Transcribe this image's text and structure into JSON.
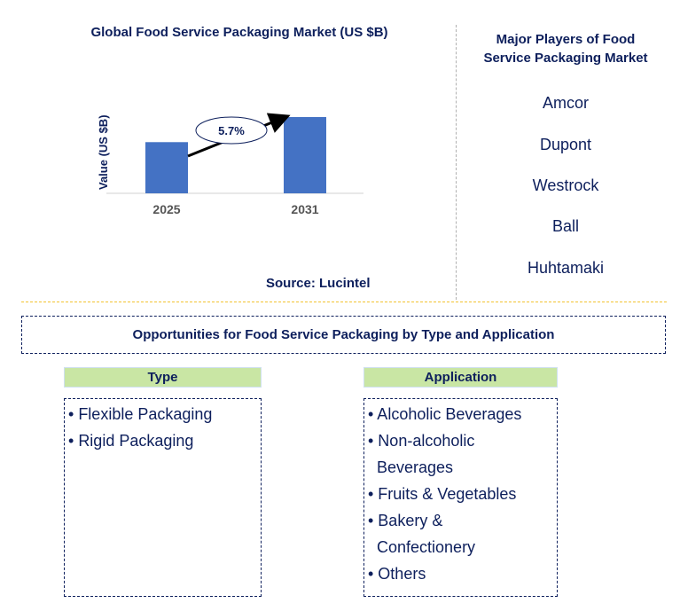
{
  "chart_data": {
    "type": "bar",
    "title": "Global Food Service Packaging Market (US $B)",
    "ylabel": "Value (US $B)",
    "categories": [
      "2025",
      "2031"
    ],
    "values": [
      1.0,
      1.49
    ],
    "value_note": "relative bar heights; no axis values printed",
    "annotation": "5.7%",
    "bar_color": "#4472c4",
    "grid": false
  },
  "source": "Source: Lucintel",
  "players": {
    "title_lines": [
      "Major Players of Food",
      "Service Packaging Market"
    ],
    "items": [
      "Amcor",
      "Dupont",
      "Westrock",
      "Ball",
      "Huhtamaki"
    ]
  },
  "opportunities": {
    "title": "Opportunities for Food Service Packaging by Type and Application",
    "type": {
      "header": "Type",
      "items": [
        "Flexible Packaging",
        "Rigid Packaging"
      ]
    },
    "application": {
      "header": "Application",
      "lines": [
        "• Alcoholic Beverages",
        "• Non-alcoholic",
        "Beverages",
        "• Fruits & Vegetables",
        "• Bakery &",
        "Confectionery",
        "• Others"
      ]
    }
  },
  "colors": {
    "navy": "#0d1f5c",
    "bar": "#4472c4",
    "header_green": "#c9e6a4",
    "divider_gold": "#f2c230"
  }
}
